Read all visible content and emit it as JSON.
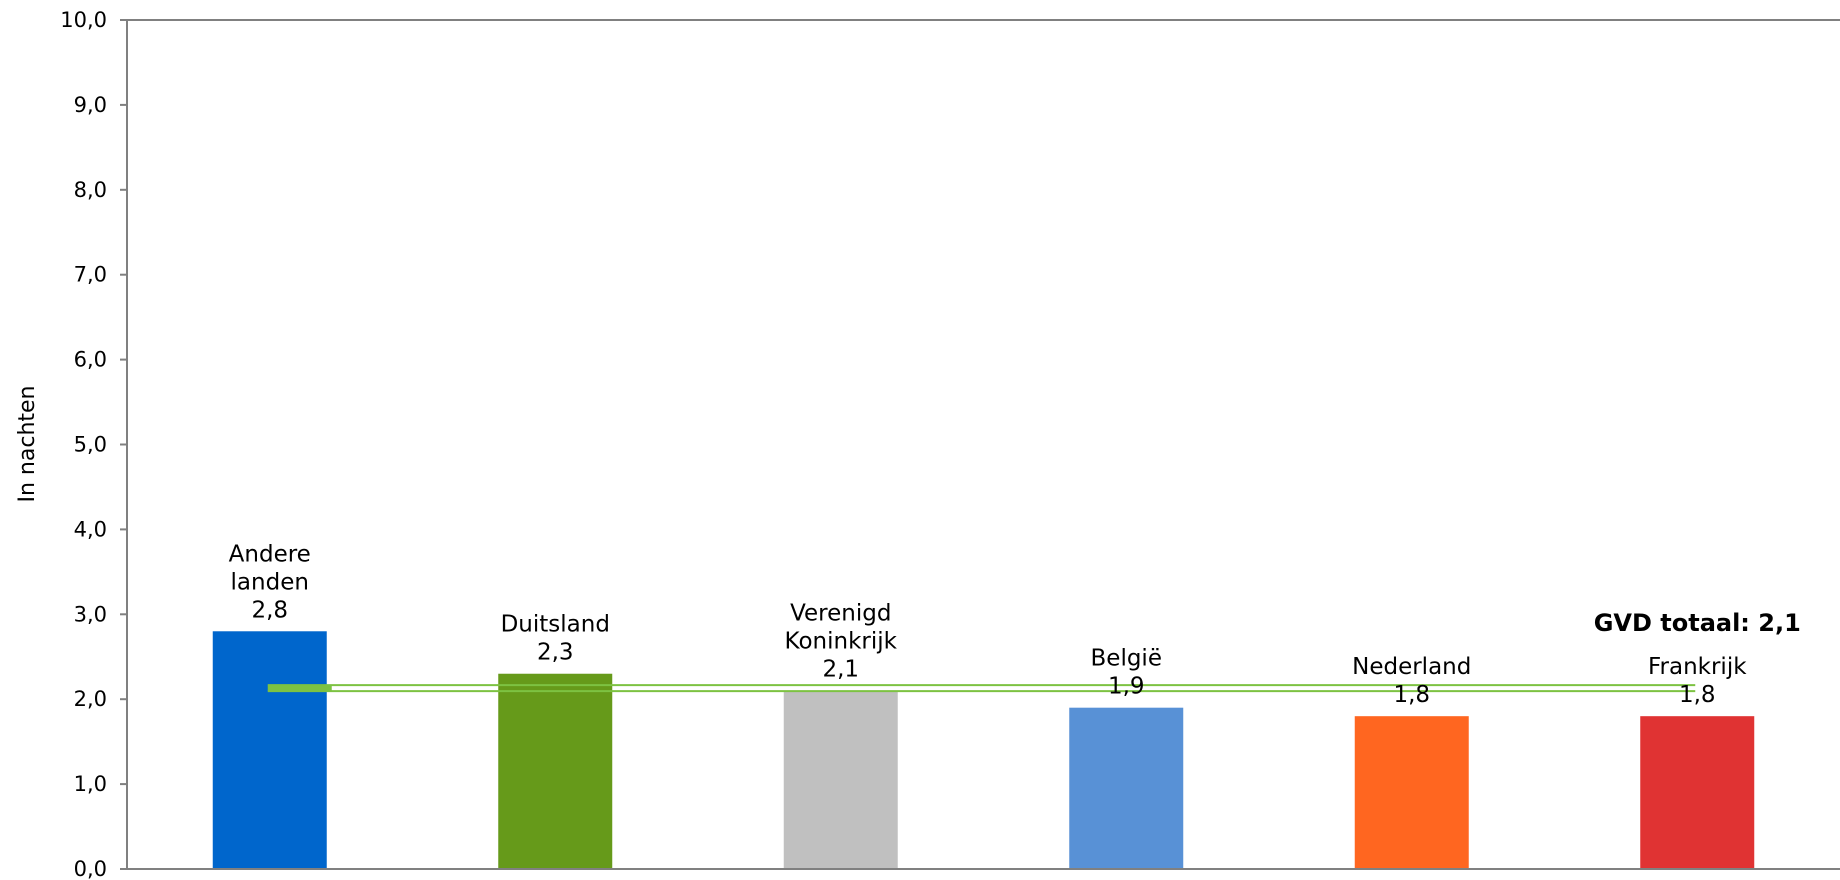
{
  "chart_data": {
    "type": "bar",
    "categories": [
      [
        "Andere",
        "landen"
      ],
      [
        "Duitsland"
      ],
      [
        "Verenigd",
        "Koninkrijk"
      ],
      [
        "België"
      ],
      [
        "Nederland"
      ],
      [
        "Frankrijk"
      ]
    ],
    "values": [
      2.8,
      2.3,
      2.1,
      1.9,
      1.8,
      1.8
    ],
    "value_labels": [
      "2,8",
      "2,3",
      "2,1",
      "1,9",
      "1,8",
      "1,8"
    ],
    "colors": [
      "#0066CC",
      "#669A1A",
      "#C0C0C0",
      "#5891D6",
      "#FF6620",
      "#E03333"
    ],
    "ylabel": "In nachten",
    "ylim": [
      0,
      10
    ],
    "yticks": [
      0,
      1,
      2,
      3,
      4,
      5,
      6,
      7,
      8,
      9,
      10
    ],
    "ytick_labels": [
      "0,0",
      "1,0",
      "2,0",
      "3,0",
      "4,0",
      "5,0",
      "6,0",
      "7,0",
      "8,0",
      "9,0",
      "10,0"
    ],
    "reference_line": {
      "value": 2.13,
      "label": "GVD totaal: 2,1",
      "color": "#7DC242"
    },
    "grid": false
  }
}
